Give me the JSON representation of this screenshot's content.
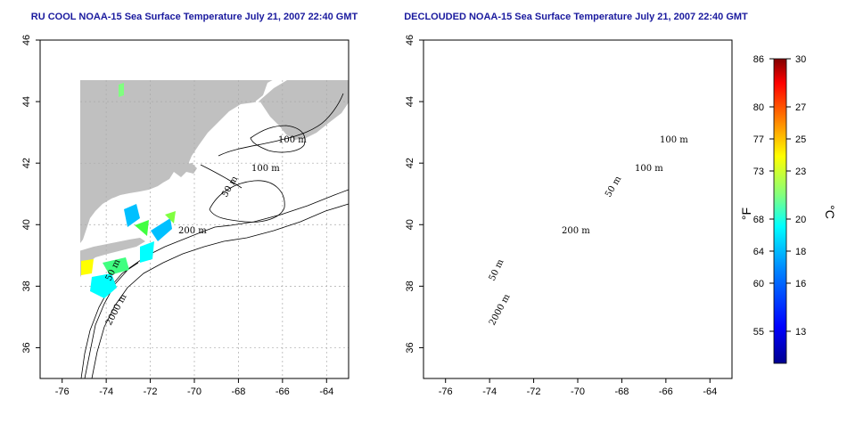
{
  "maps": [
    {
      "title": "RU COOL NOAA-15 Sea Surface Temperature July 21, 2007 22:40 GMT",
      "lon_range": [
        -77,
        -63
      ],
      "lat_range": [
        35,
        46
      ],
      "x_ticks": [
        "-76",
        "-74",
        "-72",
        "-70",
        "-68",
        "-66",
        "-64"
      ],
      "y_ticks": [
        "36",
        "38",
        "40",
        "42",
        "44",
        "46"
      ]
    },
    {
      "title": "DECLOUDED NOAA-15 Sea Surface Temperature July 21, 2007 22:40 GMT",
      "lon_range": [
        -77,
        -63
      ],
      "lat_range": [
        35,
        46
      ],
      "x_ticks": [
        "-76",
        "-74",
        "-72",
        "-70",
        "-68",
        "-66",
        "-64"
      ],
      "y_ticks": [
        "36",
        "38",
        "40",
        "42",
        "44",
        "46"
      ]
    }
  ],
  "contour_labels": [
    "100 m",
    "100 m",
    "50 m",
    "200 m",
    "50 m",
    "2000 m"
  ],
  "colorbar": {
    "fahrenheit_label": "°F",
    "celsius_label": "°C",
    "fahrenheit_ticks": [
      "86",
      "80",
      "77",
      "73",
      "68",
      "64",
      "60",
      "55"
    ],
    "celsius_ticks": [
      "30",
      "27",
      "25",
      "23",
      "20",
      "18",
      "16",
      "13"
    ],
    "celsius_values": [
      30,
      27,
      25,
      23,
      20,
      18,
      16,
      13
    ],
    "range_c": [
      11,
      30
    ],
    "colors": [
      "#00008f",
      "#0000ff",
      "#0080ff",
      "#00ffff",
      "#80ff80",
      "#ffff00",
      "#ff8000",
      "#ff0000",
      "#800000"
    ]
  },
  "colors": {
    "land": "#c0c0c0",
    "ocean": "#ffffff",
    "title": "#1a1a9e",
    "grid": "#aaaaaa"
  }
}
